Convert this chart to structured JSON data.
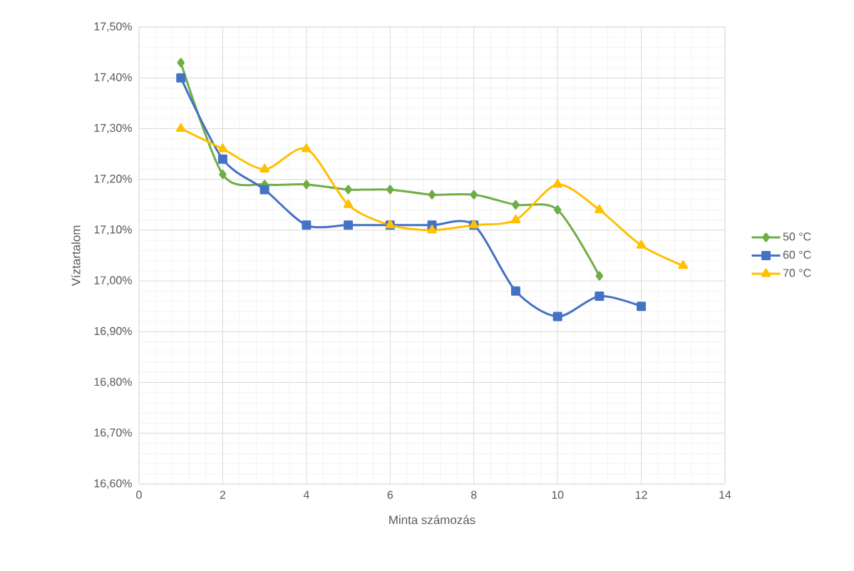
{
  "chart_data": {
    "type": "line",
    "xlabel": "Minta számozás",
    "ylabel": "Víztartalom",
    "series": [
      {
        "name": "50 °C",
        "color": "#70ad47",
        "marker": "diamond",
        "x": [
          1,
          2,
          3,
          4,
          5,
          6,
          7,
          8,
          9,
          10,
          11
        ],
        "values": [
          17.43,
          17.21,
          17.19,
          17.19,
          17.18,
          17.18,
          17.17,
          17.17,
          17.15,
          17.14,
          17.01
        ]
      },
      {
        "name": "60 °C",
        "color": "#4472c4",
        "marker": "square",
        "x": [
          1,
          2,
          3,
          4,
          5,
          6,
          7,
          8,
          9,
          10,
          11,
          12
        ],
        "values": [
          17.4,
          17.24,
          17.18,
          17.11,
          17.11,
          17.11,
          17.11,
          17.11,
          16.98,
          16.93,
          16.97,
          16.95
        ]
      },
      {
        "name": "70 °C",
        "color": "#ffc000",
        "marker": "triangle",
        "x": [
          1,
          2,
          3,
          4,
          5,
          6,
          7,
          8,
          9,
          10,
          11,
          12,
          13
        ],
        "values": [
          17.3,
          17.26,
          17.22,
          17.26,
          17.15,
          17.11,
          17.1,
          17.11,
          17.12,
          17.19,
          17.14,
          17.07,
          17.03
        ]
      }
    ],
    "xlim": [
      0,
      14
    ],
    "xticks": [
      0,
      2,
      4,
      6,
      8,
      10,
      12,
      14
    ],
    "ylim": [
      16.6,
      17.5
    ],
    "yticks": [
      {
        "value": 16.6,
        "label": "16,60%"
      },
      {
        "value": 16.7,
        "label": "16,70%"
      },
      {
        "value": 16.8,
        "label": "16,80%"
      },
      {
        "value": 16.9,
        "label": "16,90%"
      },
      {
        "value": 17.0,
        "label": "17,00%"
      },
      {
        "value": 17.1,
        "label": "17,10%"
      },
      {
        "value": 17.2,
        "label": "17,20%"
      },
      {
        "value": 17.3,
        "label": "17,30%"
      },
      {
        "value": 17.4,
        "label": "17,40%"
      },
      {
        "value": 17.5,
        "label": "17,50%"
      }
    ],
    "grid": true,
    "legend": "right",
    "line_style": "solid"
  }
}
